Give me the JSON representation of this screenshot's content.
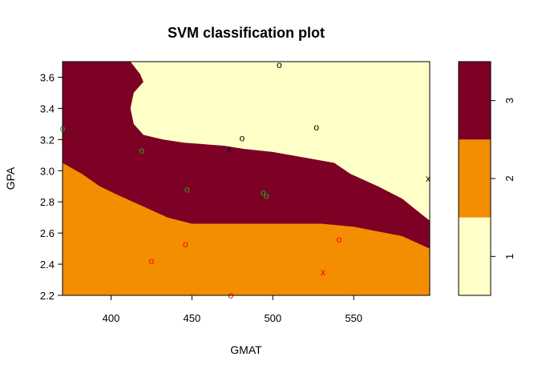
{
  "chart_data": {
    "type": "heatmap",
    "title": "SVM classification plot",
    "xlabel": "GMAT",
    "ylabel": "GPA",
    "xlim": [
      370,
      597
    ],
    "ylim": [
      2.2,
      3.7
    ],
    "x_ticks": [
      "400",
      "450",
      "500",
      "550"
    ],
    "y_ticks": [
      "2.2",
      "2.4",
      "2.6",
      "2.8",
      "3.0",
      "3.2",
      "3.4",
      "3.6"
    ],
    "legend_ticks": [
      "1",
      "2",
      "3"
    ],
    "legend_placement": "right",
    "region_colors": {
      "1": "#FFFFC8",
      "2": "#F28E00",
      "3": "#7D0025"
    },
    "regions": [
      {
        "class": "3",
        "boundary": [
          [
            370,
            3.7
          ],
          [
            597,
            3.7
          ],
          [
            597,
            2.5
          ],
          [
            580,
            2.58
          ],
          [
            550,
            2.64
          ],
          [
            530,
            2.66
          ],
          [
            510,
            2.66
          ],
          [
            450,
            2.66
          ],
          [
            435,
            2.7
          ],
          [
            420,
            2.77
          ],
          [
            405,
            2.84
          ],
          [
            393,
            2.9
          ],
          [
            382,
            2.98
          ],
          [
            370,
            3.05
          ]
        ]
      },
      {
        "class": "1",
        "boundary": [
          [
            395,
            3.7
          ],
          [
            597,
            3.7
          ],
          [
            597,
            2.68
          ],
          [
            592,
            2.72
          ],
          [
            580,
            2.82
          ],
          [
            565,
            2.9
          ],
          [
            548,
            2.98
          ],
          [
            538,
            3.05
          ],
          [
            522,
            3.08
          ],
          [
            500,
            3.12
          ],
          [
            482,
            3.14
          ],
          [
            470,
            3.16
          ],
          [
            445,
            3.18
          ],
          [
            432,
            3.2
          ],
          [
            420,
            3.23
          ],
          [
            414,
            3.3
          ],
          [
            412,
            3.4
          ],
          [
            414,
            3.5
          ],
          [
            420,
            3.57
          ],
          [
            418,
            3.62
          ],
          [
            412,
            3.7
          ]
        ]
      }
    ],
    "points": [
      {
        "x": 370,
        "y": 3.27,
        "marker": "o",
        "class": "3"
      },
      {
        "x": 419,
        "y": 3.13,
        "marker": "o",
        "class": "3"
      },
      {
        "x": 447,
        "y": 2.88,
        "marker": "o",
        "class": "3"
      },
      {
        "x": 494,
        "y": 2.86,
        "marker": "o",
        "class": "3"
      },
      {
        "x": 496,
        "y": 2.84,
        "marker": "o",
        "class": "3"
      },
      {
        "x": 425,
        "y": 2.42,
        "marker": "o",
        "class": "2"
      },
      {
        "x": 446,
        "y": 2.53,
        "marker": "o",
        "class": "2"
      },
      {
        "x": 474,
        "y": 2.2,
        "marker": "o",
        "class": "2"
      },
      {
        "x": 531,
        "y": 2.35,
        "marker": "x",
        "class": "2"
      },
      {
        "x": 541,
        "y": 2.56,
        "marker": "o",
        "class": "2"
      },
      {
        "x": 504,
        "y": 3.68,
        "marker": "o",
        "class": "1"
      },
      {
        "x": 481,
        "y": 3.21,
        "marker": "o",
        "class": "1"
      },
      {
        "x": 527,
        "y": 3.28,
        "marker": "o",
        "class": "1"
      },
      {
        "x": 473,
        "y": 3.14,
        "marker": "x",
        "class": "1"
      },
      {
        "x": 596,
        "y": 2.95,
        "marker": "x",
        "class": "1"
      }
    ],
    "point_colors": {
      "1": "#000000",
      "2": "#FF0000",
      "3": "#22AA22"
    }
  }
}
